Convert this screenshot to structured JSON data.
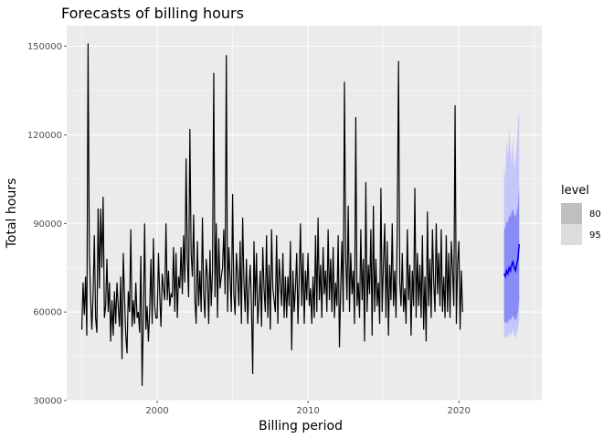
{
  "chart_data": {
    "type": "line",
    "title": "Forecasts of billing hours",
    "xlabel": "Billing period",
    "ylabel": "Total hours",
    "xlim": [
      1994.0,
      2025.5
    ],
    "ylim": [
      30000,
      157000
    ],
    "x_ticks": [
      {
        "value": 2000,
        "label": "2000"
      },
      {
        "value": 2010,
        "label": "2010"
      },
      {
        "value": 2020,
        "label": "2020"
      }
    ],
    "y_ticks": [
      {
        "value": 30000,
        "label": "30000"
      },
      {
        "value": 60000,
        "label": "60000"
      },
      {
        "value": 90000,
        "label": "90000"
      },
      {
        "value": 120000,
        "label": "120000"
      },
      {
        "value": 150000,
        "label": "150000"
      }
    ],
    "grid": true,
    "legend": {
      "title": "level",
      "placement": "right",
      "entries": [
        {
          "label": "80",
          "color": "#bfbfbf"
        },
        {
          "label": "95",
          "color": "#dcdcdc"
        }
      ]
    },
    "colors": {
      "panel": "#ebebeb",
      "grid": "#ffffff",
      "history": "#000000",
      "forecast": "#0000ff",
      "band80": "#8b8bf5",
      "band95": "#c6c6fa"
    },
    "history": {
      "start": 1995.0,
      "step": 0.08333,
      "values": [
        54000,
        70000,
        59000,
        72000,
        52000,
        151000,
        80000,
        65000,
        54000,
        66000,
        86000,
        58000,
        53000,
        95000,
        68000,
        95000,
        75000,
        99000,
        58000,
        62000,
        78000,
        60000,
        70000,
        50000,
        64000,
        52000,
        67000,
        56000,
        70000,
        62000,
        55000,
        72000,
        44000,
        80000,
        65000,
        52000,
        46000,
        67000,
        60000,
        88000,
        55000,
        64000,
        56000,
        70000,
        58000,
        60000,
        53000,
        79000,
        35000,
        58000,
        90000,
        54000,
        62000,
        50000,
        60000,
        78000,
        56000,
        85000,
        62000,
        58000,
        58000,
        80000,
        66000,
        55000,
        73000,
        68000,
        64000,
        90000,
        64000,
        74000,
        62000,
        66000,
        65000,
        82000,
        60000,
        80000,
        58000,
        72000,
        68000,
        82000,
        66000,
        86000,
        70000,
        112000,
        78000,
        65000,
        122000,
        80000,
        72000,
        93000,
        64000,
        56000,
        84000,
        62000,
        74000,
        60000,
        92000,
        66000,
        58000,
        78000,
        72000,
        56000,
        81000,
        62000,
        74000,
        141000,
        65000,
        90000,
        58000,
        85000,
        68000,
        72000,
        75000,
        88000,
        66000,
        147000,
        60000,
        82000,
        72000,
        60000,
        100000,
        66000,
        59000,
        80000,
        72000,
        62000,
        84000,
        56000,
        92000,
        70000,
        60000,
        78000,
        56000,
        68000,
        76000,
        62000,
        39000,
        84000,
        62000,
        80000,
        56000,
        64000,
        74000,
        55000,
        82000,
        68000,
        60000,
        86000,
        58000,
        76000,
        54000,
        88000,
        68000,
        64000,
        60000,
        86000,
        56000,
        78000,
        70000,
        62000,
        80000,
        58000,
        72000,
        58000,
        72000,
        62000,
        84000,
        47000,
        74000,
        60000,
        68000,
        80000,
        56000,
        72000,
        90000,
        62000,
        80000,
        56000,
        74000,
        64000,
        80000,
        62000,
        68000,
        56000,
        72000,
        58000,
        86000,
        60000,
        92000,
        64000,
        76000,
        58000,
        82000,
        66000,
        74000,
        60000,
        88000,
        64000,
        78000,
        60000,
        82000,
        58000,
        70000,
        62000,
        86000,
        48000,
        68000,
        84000,
        60000,
        138000,
        78000,
        64000,
        96000,
        60000,
        80000,
        66000,
        74000,
        56000,
        126000,
        62000,
        70000,
        58000,
        88000,
        64000,
        78000,
        50000,
        104000,
        60000,
        76000,
        66000,
        88000,
        52000,
        96000,
        60000,
        78000,
        62000,
        70000,
        56000,
        102000,
        60000,
        76000,
        90000,
        58000,
        84000,
        52000,
        76000,
        64000,
        90000,
        62000,
        74000,
        58000,
        88000,
        145000,
        70000,
        62000,
        80000,
        60000,
        68000,
        56000,
        88000,
        64000,
        76000,
        52000,
        74000,
        62000,
        102000,
        58000,
        80000,
        62000,
        76000,
        58000,
        86000,
        54000,
        72000,
        50000,
        94000,
        62000,
        78000,
        58000,
        88000,
        70000,
        60000,
        90000,
        66000,
        80000,
        62000,
        88000,
        60000,
        72000,
        58000,
        86000,
        60000,
        80000,
        58000,
        84000,
        74000,
        62000,
        130000,
        56000,
        76000,
        84000,
        54000,
        74000,
        60000
      ]
    },
    "forecast": {
      "x": [
        2023.0,
        2023.083,
        2023.167,
        2023.25,
        2023.333,
        2023.417,
        2023.5,
        2023.583,
        2023.667,
        2023.75,
        2023.833,
        2023.917,
        2024.0
      ],
      "mean": [
        73000,
        72000,
        74000,
        73000,
        75000,
        74000,
        76000,
        77000,
        75000,
        74000,
        76000,
        78000,
        83000
      ],
      "lo80": [
        57000,
        56000,
        57000,
        56000,
        58000,
        57000,
        58000,
        59000,
        58000,
        57000,
        58000,
        60000,
        64000
      ],
      "hi80": [
        89000,
        88000,
        91000,
        90000,
        93000,
        92000,
        94000,
        95000,
        93000,
        92000,
        94000,
        96000,
        102000
      ],
      "lo95": [
        52000,
        51000,
        52000,
        51000,
        53000,
        52000,
        53000,
        54000,
        52000,
        51000,
        53000,
        54000,
        58000
      ],
      "hi95": [
        110000,
        105000,
        118000,
        112000,
        122000,
        115000,
        110000,
        120000,
        108000,
        112000,
        116000,
        124000,
        128000
      ]
    }
  }
}
